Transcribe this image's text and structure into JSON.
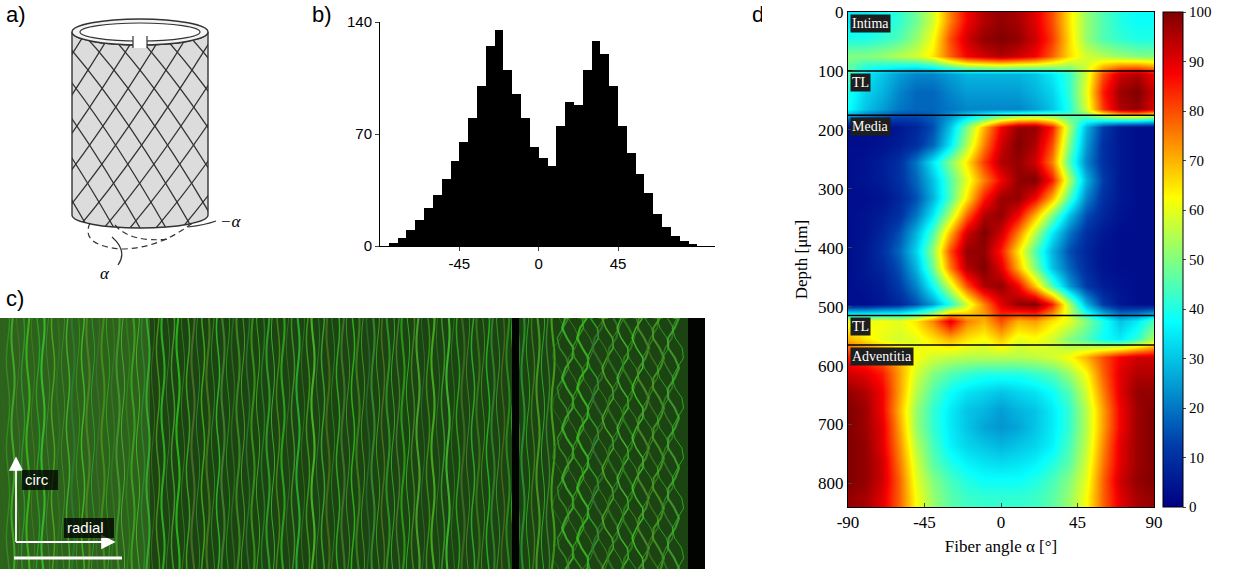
{
  "chart_data": [
    {
      "panel": "b)",
      "type": "histogram",
      "color": "#000000",
      "bins": [
        -90,
        -85,
        -80,
        -75,
        -70,
        -65,
        -60,
        -55,
        -50,
        -45,
        -40,
        -35,
        -30,
        -25,
        -20,
        -15,
        -10,
        -5,
        0,
        5,
        10,
        15,
        20,
        25,
        30,
        35,
        40,
        45,
        50,
        55,
        60,
        65,
        70,
        75,
        80,
        85,
        90,
        95,
        100
      ],
      "counts": [
        0,
        2,
        5,
        10,
        16,
        24,
        32,
        42,
        53,
        65,
        80,
        100,
        125,
        135,
        110,
        95,
        80,
        62,
        55,
        50,
        75,
        90,
        88,
        110,
        128,
        120,
        100,
        75,
        58,
        45,
        33,
        20,
        12,
        6,
        3,
        1,
        0,
        0
      ],
      "xlim": [
        -90,
        100
      ],
      "xticks": [
        -45,
        0,
        45
      ],
      "ylim": [
        0,
        140
      ],
      "yticks": [
        0,
        70,
        140
      ]
    },
    {
      "panel": "d)",
      "type": "heatmap",
      "xlabel": "Fiber angle α [°]",
      "ylabel": "Depth [μm]",
      "x": [
        -90,
        -80,
        -70,
        -60,
        -50,
        -40,
        -30,
        -20,
        -10,
        0,
        10,
        20,
        30,
        40,
        50,
        60,
        70,
        80,
        90
      ],
      "y": [
        15,
        45,
        75,
        105,
        135,
        165,
        195,
        225,
        255,
        285,
        315,
        345,
        375,
        405,
        435,
        465,
        495,
        525,
        555,
        585,
        615,
        645,
        675,
        705,
        735,
        765,
        795,
        825
      ],
      "cells": [
        [
          35,
          35,
          38,
          42,
          48,
          58,
          75,
          88,
          95,
          98,
          96,
          90,
          80,
          65,
          52,
          45,
          40,
          38,
          38
        ],
        [
          40,
          40,
          42,
          45,
          52,
          62,
          80,
          92,
          98,
          100,
          98,
          92,
          82,
          66,
          52,
          45,
          42,
          40,
          40
        ],
        [
          50,
          50,
          52,
          55,
          58,
          65,
          78,
          88,
          92,
          95,
          92,
          88,
          78,
          66,
          58,
          55,
          52,
          50,
          50
        ],
        [
          45,
          35,
          30,
          25,
          22,
          22,
          25,
          28,
          28,
          28,
          28,
          30,
          35,
          42,
          58,
          80,
          92,
          95,
          88
        ],
        [
          40,
          32,
          28,
          22,
          18,
          18,
          22,
          25,
          25,
          25,
          25,
          28,
          32,
          42,
          60,
          85,
          97,
          100,
          92
        ],
        [
          38,
          30,
          25,
          20,
          18,
          18,
          20,
          22,
          22,
          22,
          22,
          25,
          30,
          40,
          58,
          82,
          95,
          98,
          90
        ],
        [
          3,
          3,
          3,
          5,
          8,
          15,
          30,
          50,
          70,
          88,
          98,
          98,
          85,
          55,
          28,
          12,
          5,
          3,
          3
        ],
        [
          3,
          3,
          4,
          6,
          10,
          18,
          35,
          55,
          75,
          92,
          100,
          95,
          80,
          50,
          25,
          10,
          5,
          3,
          3
        ],
        [
          3,
          4,
          6,
          10,
          20,
          35,
          50,
          65,
          82,
          95,
          98,
          92,
          75,
          45,
          22,
          10,
          5,
          3,
          3
        ],
        [
          3,
          4,
          6,
          10,
          18,
          30,
          45,
          60,
          75,
          88,
          98,
          100,
          85,
          55,
          28,
          12,
          5,
          3,
          3
        ],
        [
          3,
          3,
          4,
          8,
          15,
          28,
          45,
          65,
          85,
          97,
          98,
          88,
          70,
          45,
          22,
          10,
          5,
          3,
          3
        ],
        [
          3,
          4,
          6,
          10,
          20,
          35,
          55,
          78,
          95,
          98,
          88,
          70,
          50,
          30,
          15,
          8,
          4,
          3,
          3
        ],
        [
          3,
          4,
          8,
          15,
          28,
          45,
          70,
          92,
          100,
          92,
          75,
          55,
          35,
          20,
          10,
          5,
          3,
          3,
          3
        ],
        [
          3,
          5,
          10,
          18,
          32,
          52,
          80,
          98,
          98,
          85,
          65,
          45,
          28,
          15,
          8,
          4,
          3,
          3,
          3
        ],
        [
          3,
          5,
          8,
          15,
          28,
          48,
          75,
          95,
          100,
          90,
          70,
          50,
          30,
          18,
          9,
          4,
          3,
          3,
          3
        ],
        [
          3,
          4,
          6,
          12,
          22,
          38,
          58,
          80,
          95,
          98,
          88,
          68,
          45,
          25,
          12,
          6,
          4,
          3,
          3
        ],
        [
          3,
          3,
          5,
          8,
          15,
          25,
          40,
          58,
          75,
          90,
          98,
          100,
          85,
          55,
          28,
          12,
          5,
          3,
          3
        ],
        [
          60,
          60,
          62,
          60,
          65,
          75,
          90,
          75,
          70,
          80,
          70,
          72,
          65,
          60,
          50,
          40,
          30,
          35,
          45
        ],
        [
          70,
          65,
          60,
          58,
          60,
          65,
          70,
          65,
          62,
          68,
          60,
          62,
          58,
          50,
          45,
          38,
          35,
          42,
          55
        ],
        [
          85,
          82,
          78,
          70,
          62,
          58,
          56,
          55,
          55,
          55,
          55,
          56,
          58,
          62,
          70,
          80,
          88,
          92,
          92
        ],
        [
          92,
          90,
          85,
          72,
          58,
          50,
          45,
          42,
          40,
          40,
          40,
          42,
          45,
          52,
          62,
          78,
          90,
          95,
          95
        ],
        [
          98,
          95,
          88,
          72,
          55,
          45,
          38,
          34,
          32,
          30,
          32,
          34,
          38,
          45,
          58,
          75,
          90,
          98,
          98
        ],
        [
          100,
          97,
          88,
          70,
          52,
          42,
          35,
          30,
          28,
          25,
          28,
          30,
          35,
          42,
          55,
          72,
          88,
          97,
          100
        ],
        [
          100,
          97,
          90,
          72,
          52,
          42,
          35,
          30,
          26,
          24,
          26,
          30,
          35,
          42,
          55,
          72,
          88,
          97,
          100
        ],
        [
          100,
          98,
          90,
          74,
          55,
          44,
          36,
          32,
          30,
          28,
          30,
          32,
          36,
          44,
          56,
          74,
          90,
          97,
          100
        ],
        [
          100,
          98,
          92,
          76,
          58,
          46,
          40,
          36,
          34,
          33,
          34,
          36,
          40,
          46,
          58,
          76,
          90,
          97,
          100
        ],
        [
          100,
          98,
          92,
          78,
          60,
          50,
          44,
          40,
          38,
          38,
          38,
          40,
          44,
          50,
          60,
          78,
          92,
          98,
          100
        ],
        [
          98,
          96,
          90,
          78,
          62,
          52,
          46,
          43,
          42,
          42,
          42,
          43,
          46,
          52,
          62,
          78,
          90,
          96,
          98
        ]
      ],
      "xlim": [
        -90,
        90
      ],
      "xticks": [
        -90,
        -45,
        0,
        45,
        90
      ],
      "ylim": [
        840,
        0
      ],
      "yticks": [
        0,
        100,
        200,
        300,
        400,
        500,
        600,
        700,
        800
      ],
      "colorbar": {
        "range": [
          0,
          100
        ],
        "ticks": [
          0,
          10,
          20,
          30,
          40,
          50,
          60,
          70,
          80,
          90,
          100
        ]
      },
      "layers": [
        {
          "label": "Intima",
          "top": 0,
          "bottom": 100
        },
        {
          "label": "TL",
          "top": 100,
          "bottom": 175
        },
        {
          "label": "Media",
          "top": 175,
          "bottom": 515
        },
        {
          "label": "TL",
          "top": 515,
          "bottom": 565
        },
        {
          "label": "Adventitia",
          "top": 565,
          "bottom": 840
        }
      ]
    }
  ],
  "schematic": {
    "panel": "a)",
    "angle_labels": [
      "α",
      "−α"
    ]
  },
  "micrograph": {
    "panel": "c)",
    "axis_labels": [
      "circ",
      "radial"
    ]
  }
}
